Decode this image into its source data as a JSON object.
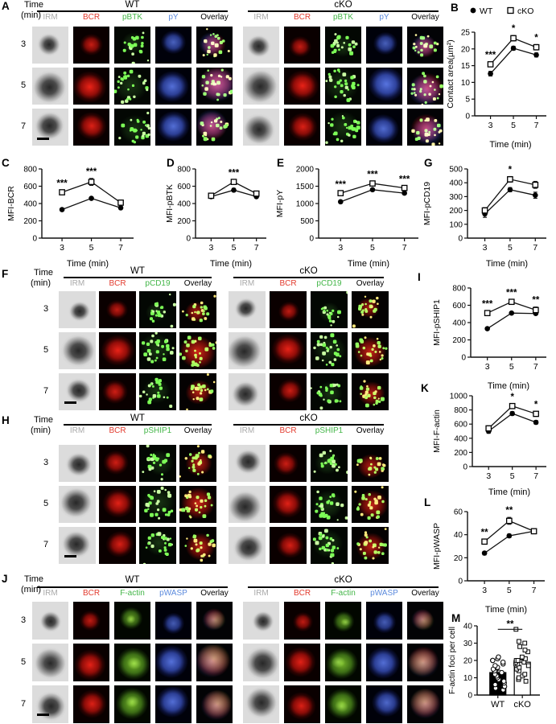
{
  "panel_letters": [
    "A",
    "B",
    "C",
    "D",
    "E",
    "F",
    "G",
    "H",
    "I",
    "J",
    "K",
    "L",
    "M"
  ],
  "legend": {
    "wt": "WT",
    "cko": "cKO"
  },
  "microscopy": {
    "time_word": "Time",
    "min_word": "(min)",
    "times": [
      "3",
      "5",
      "7"
    ],
    "groups": [
      "WT",
      "cKO"
    ],
    "channel_colors": {
      "IRM": "#a9a9a9",
      "BCR": "#e23b2e",
      "pBTK": "#44b649",
      "pCD19": "#44b649",
      "pSHIP1": "#44b649",
      "F-actin": "#44b649",
      "pY": "#5b8add",
      "pWASP": "#5b8add",
      "Overlay": "#000000"
    },
    "panels": [
      {
        "letter": "A",
        "channels": [
          "IRM",
          "BCR",
          "pBTK",
          "pY",
          "Overlay"
        ]
      },
      {
        "letter": "F",
        "channels": [
          "IRM",
          "BCR",
          "pCD19",
          "Overlay"
        ]
      },
      {
        "letter": "H",
        "channels": [
          "IRM",
          "BCR",
          "pSHIP1",
          "Overlay"
        ]
      },
      {
        "letter": "J",
        "channels": [
          "IRM",
          "BCR",
          "F-actin",
          "pWASP",
          "Overlay"
        ]
      }
    ]
  },
  "chart_data": [
    {
      "panel": "B",
      "type": "line",
      "ylabel": "Contact area(µm²)",
      "ylim": [
        0,
        25
      ],
      "yticks": [
        0,
        5,
        10,
        15,
        20,
        25
      ],
      "categories": [
        3,
        5,
        7
      ],
      "xlabel": "Time (min)",
      "legend": true,
      "series": [
        {
          "name": "WT",
          "marker": "filled-circle",
          "values": [
            12.6,
            20.2,
            18.2
          ],
          "err": [
            0.7,
            0.6,
            0.6
          ]
        },
        {
          "name": "cKO",
          "marker": "open-square",
          "values": [
            15.4,
            23.2,
            20.5
          ],
          "err": [
            0.7,
            0.8,
            0.8
          ]
        }
      ],
      "sig": [
        "***",
        "*",
        "*"
      ]
    },
    {
      "panel": "C",
      "type": "line",
      "ylabel": "MFI-BCR",
      "ylim": [
        0,
        800
      ],
      "yticks": [
        0,
        200,
        400,
        600,
        800
      ],
      "categories": [
        3,
        5,
        7
      ],
      "xlabel": "Time (min)",
      "series": [
        {
          "name": "WT",
          "marker": "filled-circle",
          "values": [
            330,
            460,
            350
          ],
          "err": [
            15,
            15,
            15
          ]
        },
        {
          "name": "cKO",
          "marker": "open-square",
          "values": [
            530,
            650,
            410
          ],
          "err": [
            25,
            40,
            30
          ]
        }
      ],
      "sig": [
        "***",
        "***",
        ""
      ]
    },
    {
      "panel": "D",
      "type": "line",
      "ylabel": "MFI-pBTK",
      "ylim": [
        0,
        800
      ],
      "yticks": [
        0,
        200,
        400,
        600,
        800
      ],
      "categories": [
        3,
        5,
        7
      ],
      "xlabel": "Time (min)",
      "series": [
        {
          "name": "WT",
          "marker": "filled-circle",
          "values": [
            480,
            555,
            480
          ],
          "err": [
            15,
            20,
            15
          ]
        },
        {
          "name": "cKO",
          "marker": "open-square",
          "values": [
            490,
            650,
            515
          ],
          "err": [
            15,
            25,
            20
          ]
        }
      ],
      "sig": [
        "",
        "***",
        ""
      ]
    },
    {
      "panel": "E",
      "type": "line",
      "ylabel": "MFI-pY",
      "ylim": [
        0,
        2000
      ],
      "yticks": [
        0,
        500,
        1000,
        1500,
        2000
      ],
      "categories": [
        3,
        5,
        7
      ],
      "xlabel": "Time (min)",
      "series": [
        {
          "name": "WT",
          "marker": "filled-circle",
          "values": [
            1050,
            1400,
            1300
          ],
          "err": [
            40,
            40,
            40
          ]
        },
        {
          "name": "cKO",
          "marker": "open-square",
          "values": [
            1300,
            1580,
            1450
          ],
          "err": [
            50,
            60,
            50
          ]
        }
      ],
      "sig": [
        "***",
        "***",
        "***"
      ]
    },
    {
      "panel": "G",
      "type": "line",
      "ylabel": "MFI-pCD19",
      "ylim": [
        0,
        500
      ],
      "yticks": [
        0,
        100,
        200,
        300,
        400,
        500
      ],
      "categories": [
        3,
        5,
        7
      ],
      "xlabel": "Time (min)",
      "series": [
        {
          "name": "WT",
          "marker": "filled-circle",
          "values": [
            175,
            350,
            310
          ],
          "err": [
            25,
            15,
            22
          ]
        },
        {
          "name": "cKO",
          "marker": "open-square",
          "values": [
            200,
            425,
            385
          ],
          "err": [
            20,
            20,
            25
          ]
        }
      ],
      "sig": [
        "",
        "*",
        ""
      ]
    },
    {
      "panel": "I",
      "type": "line",
      "ylabel": "MFI-pSHIP1",
      "ylim": [
        0,
        800
      ],
      "yticks": [
        0,
        200,
        400,
        600,
        800
      ],
      "categories": [
        3,
        5,
        7
      ],
      "xlabel": "Time (min)",
      "series": [
        {
          "name": "WT",
          "marker": "filled-circle",
          "values": [
            330,
            510,
            505
          ],
          "err": [
            15,
            15,
            15
          ]
        },
        {
          "name": "cKO",
          "marker": "open-square",
          "values": [
            510,
            640,
            545
          ],
          "err": [
            25,
            25,
            35
          ]
        }
      ],
      "sig": [
        "***",
        "***",
        "**"
      ]
    },
    {
      "panel": "K",
      "type": "line",
      "ylabel": "MFI-F-actin",
      "ylim": [
        0,
        1000
      ],
      "yticks": [
        0,
        200,
        400,
        600,
        800,
        1000
      ],
      "categories": [
        3,
        5,
        7
      ],
      "xlabel": "Time (min)",
      "series": [
        {
          "name": "WT",
          "marker": "filled-circle",
          "values": [
            500,
            750,
            625
          ],
          "err": [
            30,
            25,
            25
          ]
        },
        {
          "name": "cKO",
          "marker": "open-square",
          "values": [
            540,
            855,
            745
          ],
          "err": [
            35,
            30,
            35
          ]
        }
      ],
      "sig": [
        "",
        "*",
        "*"
      ]
    },
    {
      "panel": "L",
      "type": "line",
      "ylabel": "MFI-pWASP",
      "ylim": [
        0,
        60
      ],
      "yticks": [
        0,
        20,
        40,
        60
      ],
      "categories": [
        3,
        5,
        7
      ],
      "xlabel": "Time (min)",
      "series": [
        {
          "name": "WT",
          "marker": "filled-circle",
          "values": [
            24,
            39,
            43
          ],
          "err": [
            1.5,
            1.5,
            1.5
          ]
        },
        {
          "name": "cKO",
          "marker": "open-square",
          "values": [
            34,
            52,
            43
          ],
          "err": [
            2,
            3,
            2
          ]
        }
      ],
      "sig": [
        "**",
        "**",
        ""
      ]
    },
    {
      "panel": "M",
      "type": "bar-scatter",
      "ylabel": "F-actin foci per cell",
      "ylim": [
        0,
        40
      ],
      "yticks": [
        0,
        10,
        20,
        30,
        40
      ],
      "categories": [
        "WT",
        "cKO"
      ],
      "means": [
        13,
        19
      ],
      "sem": [
        1.4,
        1.4
      ],
      "points": [
        [
          3,
          4,
          5,
          5,
          6,
          7,
          8,
          9,
          10,
          11,
          12,
          13,
          14,
          15,
          16,
          17,
          18,
          19,
          20,
          20,
          21,
          22
        ],
        [
          8,
          9,
          10,
          11,
          12,
          14,
          15,
          16,
          17,
          18,
          18,
          19,
          19,
          20,
          20,
          21,
          22,
          25,
          26,
          28,
          30,
          31,
          38
        ]
      ],
      "sig": "**"
    }
  ]
}
